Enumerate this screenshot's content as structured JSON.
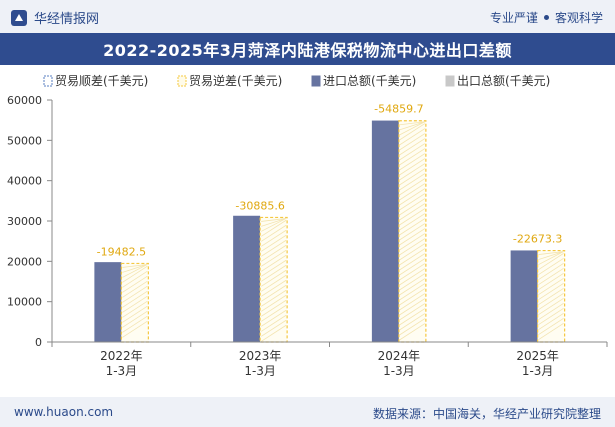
{
  "header": {
    "logo_text": "华经情报网",
    "tagline_left": "专业严谨",
    "tagline_right": "客观科学"
  },
  "chart_title": "2022-2025年3月菏泽内陆港保税物流中心进出口差额",
  "footer": {
    "website": "www.huaon.com",
    "source": "数据来源：中国海关，华经产业研究院整理"
  },
  "colors": {
    "import": "#6673a0",
    "surplus_legend": "#5a7fc0",
    "deficit": "#f5c842",
    "export": "#c8c8c8",
    "title_bg": "#2f4c8f",
    "label": "#e0a810"
  },
  "chart_data": {
    "type": "bar",
    "categories": [
      "2022年\n1-3月",
      "2023年\n1-3月",
      "2024年\n1-3月",
      "2025年\n1-3月"
    ],
    "series": [
      {
        "name": "贸易顺差(千美元)",
        "values": [
          0,
          0,
          0,
          0
        ]
      },
      {
        "name": "贸易逆差(千美元)",
        "values": [
          -19482.5,
          -30885.6,
          -54859.7,
          -22673.3
        ]
      },
      {
        "name": "进口总额(千美元)",
        "values": [
          19800,
          31300,
          54900,
          22700
        ]
      },
      {
        "name": "出口总额(千美元)",
        "values": [
          317.5,
          414.4,
          40.3,
          26.7
        ]
      }
    ],
    "data_labels": [
      "-19482.5",
      "-30885.6",
      "-54859.7",
      "-22673.3"
    ],
    "ylim": [
      0,
      60000
    ],
    "yticks": [
      0,
      10000,
      20000,
      30000,
      40000,
      50000,
      60000
    ],
    "legend_position": "top",
    "grid": false
  }
}
